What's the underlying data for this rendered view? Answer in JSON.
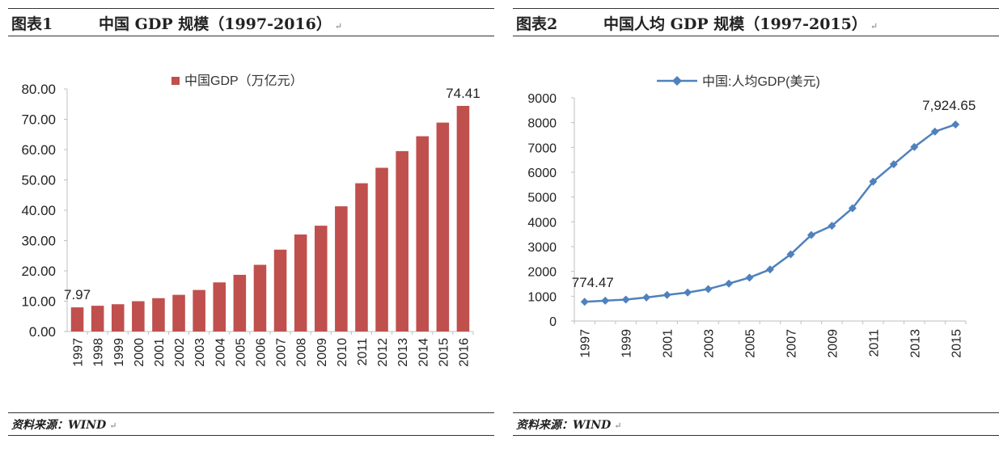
{
  "colors": {
    "bar": "#C0504D",
    "line": "#4F81BD",
    "axis": "#BFBFBF"
  },
  "para_mark": "↵",
  "left": {
    "figure_label": "图表1",
    "figure_title": "中国 GDP 规模（1997-2016）",
    "source": "资料来源：WIND"
  },
  "right": {
    "figure_label": "图表2",
    "figure_title": "中国人均 GDP 规模（1997-2015）",
    "source": "资料来源：WIND"
  },
  "chart_data": [
    {
      "type": "bar",
      "legend": "中国GDP（万亿元）",
      "legend_position": "top",
      "categories": [
        "1997",
        "1998",
        "1999",
        "2000",
        "2001",
        "2002",
        "2003",
        "2004",
        "2005",
        "2006",
        "2007",
        "2008",
        "2009",
        "2010",
        "2011",
        "2012",
        "2013",
        "2014",
        "2015",
        "2016"
      ],
      "values": [
        7.97,
        8.5,
        9.0,
        10.0,
        11.0,
        12.1,
        13.7,
        16.2,
        18.7,
        22.0,
        27.0,
        32.0,
        34.9,
        41.3,
        48.9,
        54.0,
        59.5,
        64.4,
        68.9,
        74.41
      ],
      "ylim": [
        0,
        80
      ],
      "yticks": [
        0,
        10,
        20,
        30,
        40,
        50,
        60,
        70,
        80
      ],
      "ytick_labels": [
        "0.00",
        "10.00",
        "20.00",
        "30.00",
        "40.00",
        "50.00",
        "60.00",
        "70.00",
        "80.00"
      ],
      "annotations": [
        {
          "index": 0,
          "text": "7.97"
        },
        {
          "index": 19,
          "text": "74.41"
        }
      ],
      "grid": false
    },
    {
      "type": "line",
      "legend": "中国:人均GDP(美元)",
      "legend_position": "top",
      "x": [
        "1997",
        "1998",
        "1999",
        "2000",
        "2001",
        "2002",
        "2003",
        "2004",
        "2005",
        "2006",
        "2007",
        "2008",
        "2009",
        "2010",
        "2011",
        "2012",
        "2013",
        "2014",
        "2015"
      ],
      "xtick_labels": [
        "1997",
        "1999",
        "2001",
        "2003",
        "2005",
        "2007",
        "2009",
        "2011",
        "2013",
        "2015"
      ],
      "values": [
        774.47,
        820,
        865,
        950,
        1050,
        1150,
        1290,
        1510,
        1750,
        2080,
        2690,
        3470,
        3840,
        4550,
        5620,
        6320,
        7020,
        7640,
        7924.65
      ],
      "ylim": [
        0,
        9000
      ],
      "yticks": [
        0,
        1000,
        2000,
        3000,
        4000,
        5000,
        6000,
        7000,
        8000,
        9000
      ],
      "ytick_labels": [
        "0",
        "1000",
        "2000",
        "3000",
        "4000",
        "5000",
        "6000",
        "7000",
        "8000",
        "9000"
      ],
      "annotations": [
        {
          "index": 0,
          "text": "774.47"
        },
        {
          "index": 18,
          "text": "7,924.65"
        }
      ],
      "marker": "diamond",
      "grid": false
    }
  ]
}
